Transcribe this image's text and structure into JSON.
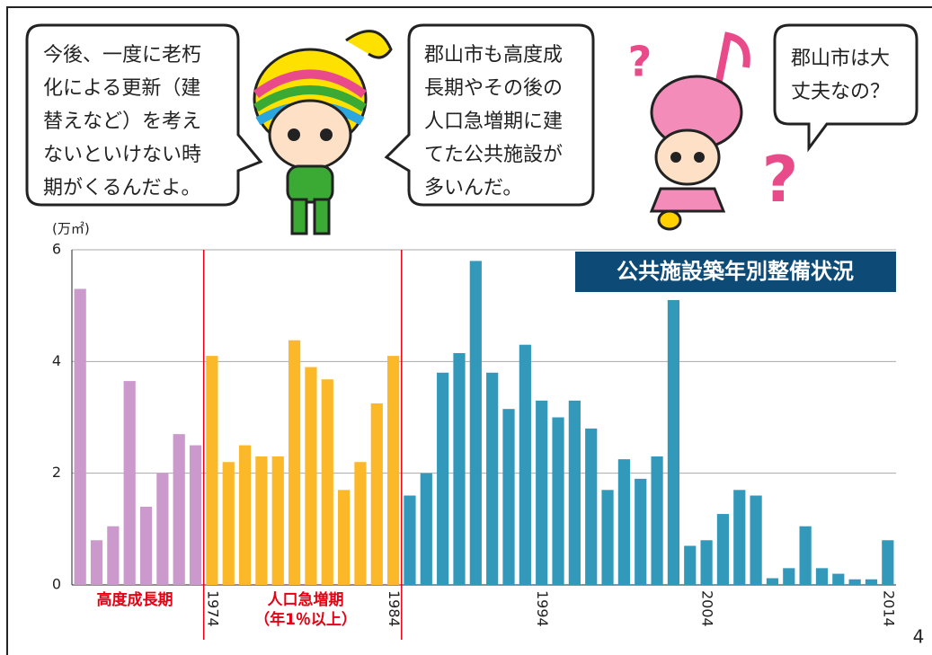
{
  "bubbles": [
    {
      "lines": [
        "今後、一度に老朽",
        "化による更新（建",
        "替えなど）を考え",
        "ないといけない時",
        "期がくるんだよ。"
      ]
    },
    {
      "lines": [
        "郡山市も高度成",
        "長期やその後の",
        "人口急増期に建",
        "てた公共施設が",
        "多いんだ。"
      ]
    },
    {
      "lines": [
        "郡山市は大",
        "丈夫なの？"
      ]
    }
  ],
  "page_number": "4",
  "chart_data": {
    "type": "bar",
    "title": "公共施設築年別整備状況",
    "y_label": "(万㎡)",
    "ylim": [
      0,
      6
    ],
    "yticks": [
      0,
      2,
      4,
      6
    ],
    "grid": true,
    "categories": [
      null,
      null,
      null,
      null,
      null,
      null,
      null,
      null,
      "1974",
      null,
      null,
      null,
      null,
      null,
      null,
      null,
      null,
      null,
      null,
      "1984",
      null,
      null,
      null,
      null,
      null,
      null,
      null,
      null,
      "1994",
      null,
      null,
      null,
      null,
      null,
      null,
      null,
      null,
      null,
      "2004",
      null,
      null,
      null,
      null,
      null,
      null,
      null,
      null,
      null,
      null,
      "2014"
    ],
    "values": [
      5.3,
      0.8,
      1.05,
      3.65,
      1.4,
      2.0,
      2.7,
      2.5,
      4.1,
      2.2,
      2.5,
      2.3,
      2.3,
      4.38,
      3.9,
      3.68,
      1.7,
      2.2,
      3.25,
      4.1,
      1.6,
      2.0,
      3.8,
      4.15,
      5.8,
      3.8,
      3.15,
      4.3,
      3.3,
      3.0,
      3.3,
      2.8,
      1.7,
      2.25,
      1.9,
      2.3,
      5.1,
      0.7,
      0.8,
      1.27,
      1.7,
      1.6,
      0.12,
      0.3,
      1.05,
      0.3,
      0.2,
      0.1,
      0.1,
      0.8
    ],
    "colors": [
      "#cc99cc",
      "#cc99cc",
      "#cc99cc",
      "#cc99cc",
      "#cc99cc",
      "#cc99cc",
      "#cc99cc",
      "#cc99cc",
      "#fbb829",
      "#fbb829",
      "#fbb829",
      "#fbb829",
      "#fbb829",
      "#fbb829",
      "#fbb829",
      "#fbb829",
      "#fbb829",
      "#fbb829",
      "#fbb829",
      "#fbb829",
      "#3399bb",
      "#3399bb",
      "#3399bb",
      "#3399bb",
      "#3399bb",
      "#3399bb",
      "#3399bb",
      "#3399bb",
      "#3399bb",
      "#3399bb",
      "#3399bb",
      "#3399bb",
      "#3399bb",
      "#3399bb",
      "#3399bb",
      "#3399bb",
      "#3399bb",
      "#3399bb",
      "#3399bb",
      "#3399bb",
      "#3399bb",
      "#3399bb",
      "#3399bb",
      "#3399bb",
      "#3399bb",
      "#3399bb",
      "#3399bb",
      "#3399bb",
      "#3399bb",
      "#3399bb"
    ],
    "annotations": [
      "高度成長期",
      "人口急増期",
      "（年1％以上）"
    ]
  }
}
